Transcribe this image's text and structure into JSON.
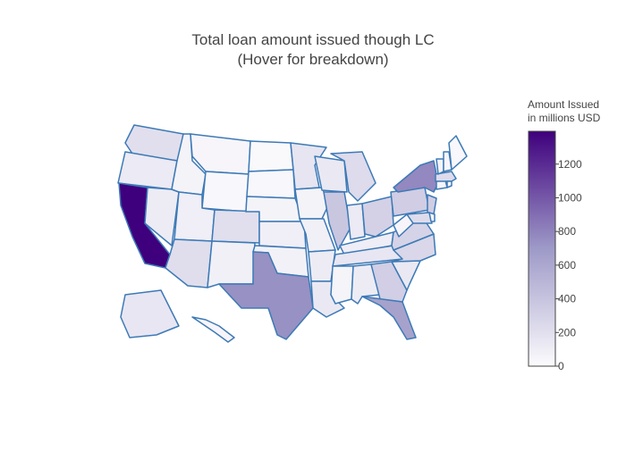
{
  "chart_data": {
    "type": "choropleth",
    "title": [
      "Total loan amount issued though LC",
      "(Hover for breakdown)"
    ],
    "colorbar_title": [
      "Amount Issued",
      "in millions USD"
    ],
    "values": [
      200,
      120,
      1395,
      110,
      60,
      40,
      30,
      90,
      210,
      200,
      80,
      20,
      30,
      60,
      90,
      70,
      740,
      160,
      60,
      130,
      80,
      110,
      130,
      380,
      230,
      120,
      300,
      100,
      150,
      50,
      110,
      320,
      640,
      130,
      260,
      290,
      40,
      330,
      780,
      330,
      220,
      40,
      150,
      40,
      230,
      50,
      60,
      40,
      30,
      40
    ],
    "colorscale": [
      "#fcfbfd",
      "#9e9ac8",
      "#3f007d"
    ],
    "zlim": [
      0,
      1395
    ],
    "zticks": [
      0,
      200,
      400,
      600,
      800,
      1000,
      1200
    ],
    "border_color": "#3d7ab6"
  }
}
